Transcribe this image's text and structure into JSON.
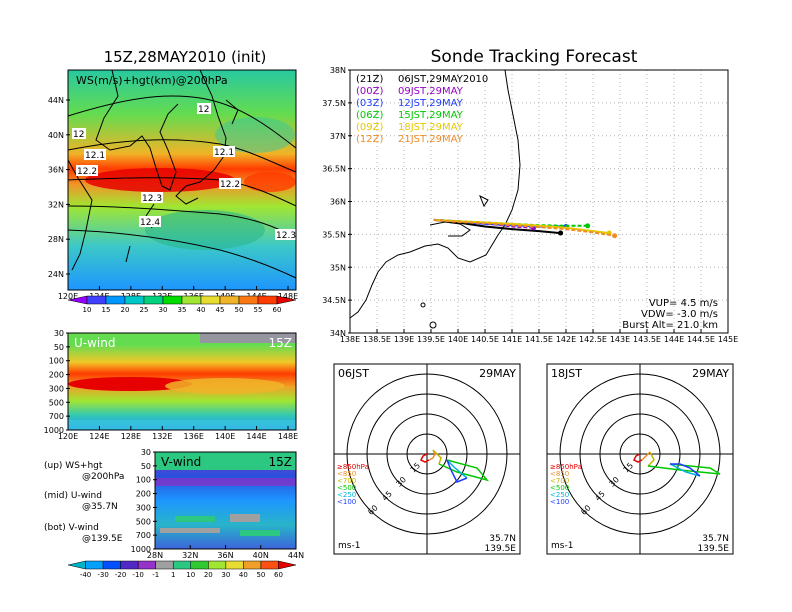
{
  "titles": {
    "left": "15Z,28MAY2010 (init)",
    "right": "Sonde Tracking Forecast"
  },
  "panel_ws": {
    "label": "WS(m/s)+hgt(km)@200hPa",
    "lat_ticks": [
      "44N",
      "40N",
      "36N",
      "32N",
      "28N",
      "24N"
    ],
    "lon_ticks": [
      "120E",
      "124E",
      "128E",
      "132E",
      "136E",
      "140E",
      "144E",
      "148E"
    ],
    "contour_labels": [
      "12",
      "12",
      "12.1",
      "12.1",
      "12.2",
      "12.2",
      "12.3",
      "12.3",
      "12.4"
    ],
    "colorbar": {
      "labels": [
        "10",
        "15",
        "20",
        "25",
        "30",
        "35",
        "40",
        "45",
        "50",
        "55",
        "60"
      ],
      "colors": [
        "#9600fe",
        "#4040ff",
        "#0096ff",
        "#00c8c8",
        "#00d27d",
        "#00dc00",
        "#a0e632",
        "#e6dc32",
        "#f0b428",
        "#fa7814",
        "#ff3c00",
        "#e60000"
      ]
    }
  },
  "panel_u": {
    "label": "U-wind",
    "time": "15Z",
    "p_ticks": [
      "30",
      "50",
      "100",
      "200",
      "300",
      "500",
      "700",
      "1000"
    ],
    "lon_ticks": [
      "120E",
      "124E",
      "128E",
      "132E",
      "136E",
      "140E",
      "144E",
      "148E"
    ]
  },
  "panel_v": {
    "label": "V-wind",
    "time": "15Z",
    "p_ticks": [
      "30",
      "50",
      "100",
      "200",
      "300",
      "500",
      "700",
      "1000"
    ],
    "lat_ticks": [
      "28N",
      "32N",
      "36N",
      "40N",
      "44N"
    ],
    "colorbar": {
      "labels": [
        "-40",
        "-30",
        "-20",
        "-10",
        "-1",
        "1",
        "10",
        "20",
        "30",
        "40",
        "50",
        "60"
      ],
      "colors": [
        "#00b4c8",
        "#00a0ff",
        "#0050ff",
        "#5028c8",
        "#9632c8",
        "#a0a0a0",
        "#2cc882",
        "#32c832",
        "#a0e632",
        "#e6dc32",
        "#f0a028",
        "#fa5014",
        "#e60000"
      ]
    }
  },
  "legend_notes": [
    "(up) WS+hgt",
    "@200hPa",
    "(mid) U-wind",
    "@35.7N",
    "(bot) V-wind",
    "@139.5E"
  ],
  "track_map": {
    "lat_ticks": [
      "38N",
      "37.5N",
      "37N",
      "36.5N",
      "36N",
      "35.5N",
      "35N",
      "34.5N",
      "34N"
    ],
    "lon_ticks": [
      "138E",
      "138.5E",
      "139E",
      "139.5E",
      "140E",
      "140.5E",
      "141E",
      "141.5E",
      "142E",
      "142.5E",
      "143E",
      "143.5E",
      "144E",
      "144.5E",
      "145E"
    ],
    "launches": [
      {
        "utc": "(21Z)",
        "jst": "06JST,29MAY2010",
        "color": "#000000"
      },
      {
        "utc": "(00Z)",
        "jst": "09JST,29MAY",
        "color": "#9600c8"
      },
      {
        "utc": "(03Z)",
        "jst": "12JST,29MAY",
        "color": "#1e3cff"
      },
      {
        "utc": "(06Z)",
        "jst": "15JST,29MAY",
        "color": "#00c800"
      },
      {
        "utc": "(09Z)",
        "jst": "18JST,29MAY",
        "color": "#e6c800"
      },
      {
        "utc": "(12Z)",
        "jst": "21JST,29MAY",
        "color": "#f08c28"
      }
    ],
    "params": [
      "VUP= 4.5 m/s",
      "VDW= -3.0 m/s",
      "Burst Alt= 21.0 km"
    ]
  },
  "hodo_left": {
    "time": "06JST",
    "date": "29MAY",
    "ring_labels": [
      "15",
      "30",
      "45",
      "60"
    ],
    "levels": [
      "≥850hPa",
      "<850",
      "<700",
      "<500",
      "<250",
      "<100"
    ],
    "level_colors": [
      "#e60000",
      "#f08c28",
      "#c8b400",
      "#00c800",
      "#00b4dc",
      "#1e3cff"
    ],
    "location": [
      "35.7N",
      "139.5E"
    ],
    "unit": "ms-1"
  },
  "hodo_right": {
    "time": "18JST",
    "date": "29MAY",
    "ring_labels": [
      "15",
      "30",
      "45",
      "60"
    ],
    "levels": [
      "≥850hPa",
      "<850",
      "<700",
      "<500",
      "<250",
      "<100"
    ],
    "level_colors": [
      "#e60000",
      "#f08c28",
      "#c8b400",
      "#00c800",
      "#00b4dc",
      "#1e3cff"
    ],
    "location": [
      "35.7N",
      "139.5E"
    ],
    "unit": "ms-1"
  },
  "chart_data": [
    {
      "type": "heatmap",
      "title": "WS(m/s)+hgt(km)@200hPa",
      "xlim": [
        120,
        150
      ],
      "ylim": [
        22,
        47
      ],
      "x_ticks": [
        "120E",
        "124E",
        "128E",
        "132E",
        "136E",
        "140E",
        "144E",
        "148E"
      ],
      "y_ticks": [
        "24N",
        "28N",
        "32N",
        "36N",
        "40N",
        "44N"
      ],
      "colorbar": [
        10,
        15,
        20,
        25,
        30,
        35,
        40,
        45,
        50,
        55,
        60
      ],
      "contours_km": [
        12,
        12.1,
        12.2,
        12.3,
        12.4
      ],
      "jet_core_ms": 60,
      "jet_core_lat": 35
    },
    {
      "type": "heatmap",
      "title": "U-wind",
      "time": "15Z",
      "xlim": [
        120,
        150
      ],
      "y_ticks_hpa": [
        30,
        50,
        100,
        200,
        300,
        500,
        700,
        1000
      ],
      "jet_core_hpa": 200,
      "jet_core_ms": 60
    },
    {
      "type": "heatmap",
      "title": "V-wind",
      "time": "15Z",
      "xlim": [
        28,
        44
      ],
      "y_ticks_hpa": [
        30,
        50,
        100,
        200,
        300,
        500,
        700,
        1000
      ],
      "colorbar": [
        -40,
        -30,
        -20,
        -10,
        -1,
        1,
        10,
        20,
        30,
        40,
        50,
        60
      ]
    },
    {
      "type": "line",
      "title": "Sonde Tracking Forecast",
      "xlim": [
        138,
        145
      ],
      "ylim": [
        34,
        38
      ],
      "series": [
        {
          "name": "(21Z) 06JST,29MAY2010",
          "color": "#000000",
          "x": [
            139.55,
            140.0,
            140.5,
            141.0,
            141.5,
            141.9
          ],
          "y": [
            35.72,
            35.68,
            35.62,
            35.58,
            35.55,
            35.52
          ]
        },
        {
          "name": "(00Z) 09JST,29MAY",
          "color": "#9600c8",
          "x": [
            139.55,
            140.0,
            140.5,
            141.0,
            141.4
          ],
          "y": [
            35.72,
            35.7,
            35.67,
            35.62,
            35.6
          ]
        },
        {
          "name": "(03Z) 12JST,29MAY",
          "color": "#1e3cff",
          "x": [
            139.55,
            140.0,
            140.5,
            141.0,
            141.5,
            142.0
          ],
          "y": [
            35.72,
            35.7,
            35.66,
            35.64,
            35.62,
            35.62
          ]
        },
        {
          "name": "(06Z) 15JST,29MAY",
          "color": "#00c800",
          "x": [
            139.55,
            140.0,
            140.5,
            141.0,
            141.5,
            142.0,
            142.4
          ],
          "y": [
            35.72,
            35.7,
            35.68,
            35.66,
            35.64,
            35.63,
            35.63
          ]
        },
        {
          "name": "(09Z) 18JST,29MAY",
          "color": "#e6c800",
          "x": [
            139.55,
            140.0,
            140.5,
            141.0,
            141.5,
            142.0,
            142.5,
            142.8
          ],
          "y": [
            35.72,
            35.7,
            35.68,
            35.66,
            35.63,
            35.6,
            35.55,
            35.52
          ]
        },
        {
          "name": "(12Z) 21JST,29MAY",
          "color": "#f08c28",
          "x": [
            139.55,
            140.0,
            140.5,
            141.0,
            141.5,
            142.0,
            142.5,
            142.9
          ],
          "y": [
            35.72,
            35.69,
            35.67,
            35.64,
            35.61,
            35.58,
            35.53,
            35.48
          ]
        }
      ]
    }
  ]
}
